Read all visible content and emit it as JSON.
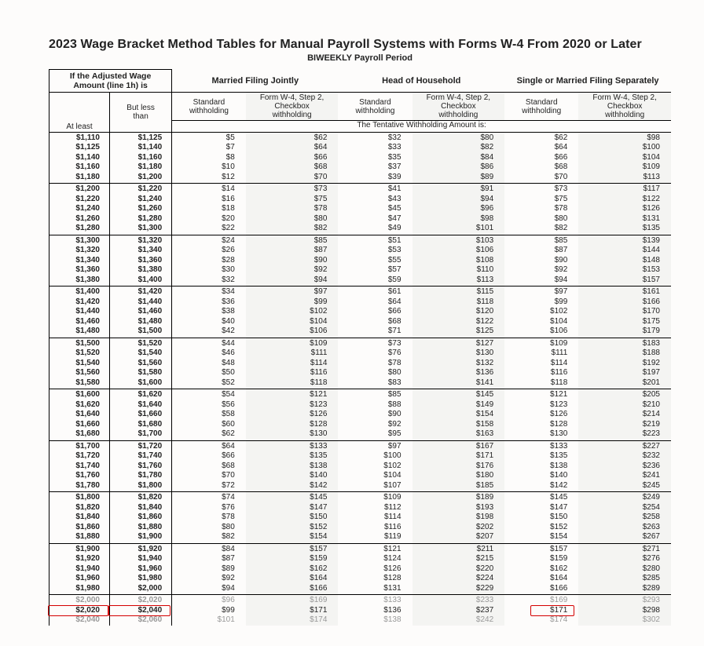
{
  "title": "2023 Wage Bracket Method Tables for Manual Payroll Systems with Forms W-4 From 2020 or Later",
  "subtitle": "BIWEEKLY Payroll Period",
  "wage_header_html": "If the <b>Adjusted Wage<br>Amount</b> (line 1h) is",
  "status_headers": [
    "Married Filing Jointly",
    "Head of Household",
    "Single or Married Filing Separately"
  ],
  "sub_headers": {
    "std": "Standard<br>withholding",
    "chk": "Form W-4, Step 2,<br>Checkbox<br>withholding"
  },
  "atleast_label": "At least",
  "butless_label": "But less<br>than",
  "tentative_label": "The Tentative Withholding Amount is:",
  "col_widths": [
    "72",
    "74",
    "88",
    "110",
    "88",
    "110",
    "88",
    "110"
  ],
  "colors": {
    "border": "#000000",
    "text": "#222222",
    "highlight": "#d40000",
    "faded": "#999999",
    "bg": "#fdfcfb",
    "shade": "#f4f4f2"
  },
  "font": {
    "family": "Arial",
    "body_pt": 10,
    "title_pt": 16
  },
  "highlighted_row_index": 46,
  "groups": [
    [
      {
        "lo": "$1,110",
        "hi": "$1,125",
        "v": [
          "$5",
          "$62",
          "$32",
          "$80",
          "$62",
          "$98"
        ]
      },
      {
        "lo": "$1,125",
        "hi": "$1,140",
        "v": [
          "$7",
          "$64",
          "$33",
          "$82",
          "$64",
          "$100"
        ]
      },
      {
        "lo": "$1,140",
        "hi": "$1,160",
        "v": [
          "$8",
          "$66",
          "$35",
          "$84",
          "$66",
          "$104"
        ]
      },
      {
        "lo": "$1,160",
        "hi": "$1,180",
        "v": [
          "$10",
          "$68",
          "$37",
          "$86",
          "$68",
          "$109"
        ]
      },
      {
        "lo": "$1,180",
        "hi": "$1,200",
        "v": [
          "$12",
          "$70",
          "$39",
          "$89",
          "$70",
          "$113"
        ]
      }
    ],
    [
      {
        "lo": "$1,200",
        "hi": "$1,220",
        "v": [
          "$14",
          "$73",
          "$41",
          "$91",
          "$73",
          "$117"
        ]
      },
      {
        "lo": "$1,220",
        "hi": "$1,240",
        "v": [
          "$16",
          "$75",
          "$43",
          "$94",
          "$75",
          "$122"
        ]
      },
      {
        "lo": "$1,240",
        "hi": "$1,260",
        "v": [
          "$18",
          "$78",
          "$45",
          "$96",
          "$78",
          "$126"
        ]
      },
      {
        "lo": "$1,260",
        "hi": "$1,280",
        "v": [
          "$20",
          "$80",
          "$47",
          "$98",
          "$80",
          "$131"
        ]
      },
      {
        "lo": "$1,280",
        "hi": "$1,300",
        "v": [
          "$22",
          "$82",
          "$49",
          "$101",
          "$82",
          "$135"
        ]
      }
    ],
    [
      {
        "lo": "$1,300",
        "hi": "$1,320",
        "v": [
          "$24",
          "$85",
          "$51",
          "$103",
          "$85",
          "$139"
        ]
      },
      {
        "lo": "$1,320",
        "hi": "$1,340",
        "v": [
          "$26",
          "$87",
          "$53",
          "$106",
          "$87",
          "$144"
        ]
      },
      {
        "lo": "$1,340",
        "hi": "$1,360",
        "v": [
          "$28",
          "$90",
          "$55",
          "$108",
          "$90",
          "$148"
        ]
      },
      {
        "lo": "$1,360",
        "hi": "$1,380",
        "v": [
          "$30",
          "$92",
          "$57",
          "$110",
          "$92",
          "$153"
        ]
      },
      {
        "lo": "$1,380",
        "hi": "$1,400",
        "v": [
          "$32",
          "$94",
          "$59",
          "$113",
          "$94",
          "$157"
        ]
      }
    ],
    [
      {
        "lo": "$1,400",
        "hi": "$1,420",
        "v": [
          "$34",
          "$97",
          "$61",
          "$115",
          "$97",
          "$161"
        ]
      },
      {
        "lo": "$1,420",
        "hi": "$1,440",
        "v": [
          "$36",
          "$99",
          "$64",
          "$118",
          "$99",
          "$166"
        ]
      },
      {
        "lo": "$1,440",
        "hi": "$1,460",
        "v": [
          "$38",
          "$102",
          "$66",
          "$120",
          "$102",
          "$170"
        ]
      },
      {
        "lo": "$1,460",
        "hi": "$1,480",
        "v": [
          "$40",
          "$104",
          "$68",
          "$122",
          "$104",
          "$175"
        ]
      },
      {
        "lo": "$1,480",
        "hi": "$1,500",
        "v": [
          "$42",
          "$106",
          "$71",
          "$125",
          "$106",
          "$179"
        ]
      }
    ],
    [
      {
        "lo": "$1,500",
        "hi": "$1,520",
        "v": [
          "$44",
          "$109",
          "$73",
          "$127",
          "$109",
          "$183"
        ]
      },
      {
        "lo": "$1,520",
        "hi": "$1,540",
        "v": [
          "$46",
          "$111",
          "$76",
          "$130",
          "$111",
          "$188"
        ]
      },
      {
        "lo": "$1,540",
        "hi": "$1,560",
        "v": [
          "$48",
          "$114",
          "$78",
          "$132",
          "$114",
          "$192"
        ]
      },
      {
        "lo": "$1,560",
        "hi": "$1,580",
        "v": [
          "$50",
          "$116",
          "$80",
          "$136",
          "$116",
          "$197"
        ]
      },
      {
        "lo": "$1,580",
        "hi": "$1,600",
        "v": [
          "$52",
          "$118",
          "$83",
          "$141",
          "$118",
          "$201"
        ]
      }
    ],
    [
      {
        "lo": "$1,600",
        "hi": "$1,620",
        "v": [
          "$54",
          "$121",
          "$85",
          "$145",
          "$121",
          "$205"
        ]
      },
      {
        "lo": "$1,620",
        "hi": "$1,640",
        "v": [
          "$56",
          "$123",
          "$88",
          "$149",
          "$123",
          "$210"
        ]
      },
      {
        "lo": "$1,640",
        "hi": "$1,660",
        "v": [
          "$58",
          "$126",
          "$90",
          "$154",
          "$126",
          "$214"
        ]
      },
      {
        "lo": "$1,660",
        "hi": "$1,680",
        "v": [
          "$60",
          "$128",
          "$92",
          "$158",
          "$128",
          "$219"
        ]
      },
      {
        "lo": "$1,680",
        "hi": "$1,700",
        "v": [
          "$62",
          "$130",
          "$95",
          "$163",
          "$130",
          "$223"
        ]
      }
    ],
    [
      {
        "lo": "$1,700",
        "hi": "$1,720",
        "v": [
          "$64",
          "$133",
          "$97",
          "$167",
          "$133",
          "$227"
        ]
      },
      {
        "lo": "$1,720",
        "hi": "$1,740",
        "v": [
          "$66",
          "$135",
          "$100",
          "$171",
          "$135",
          "$232"
        ]
      },
      {
        "lo": "$1,740",
        "hi": "$1,760",
        "v": [
          "$68",
          "$138",
          "$102",
          "$176",
          "$138",
          "$236"
        ]
      },
      {
        "lo": "$1,760",
        "hi": "$1,780",
        "v": [
          "$70",
          "$140",
          "$104",
          "$180",
          "$140",
          "$241"
        ]
      },
      {
        "lo": "$1,780",
        "hi": "$1,800",
        "v": [
          "$72",
          "$142",
          "$107",
          "$185",
          "$142",
          "$245"
        ]
      }
    ],
    [
      {
        "lo": "$1,800",
        "hi": "$1,820",
        "v": [
          "$74",
          "$145",
          "$109",
          "$189",
          "$145",
          "$249"
        ]
      },
      {
        "lo": "$1,820",
        "hi": "$1,840",
        "v": [
          "$76",
          "$147",
          "$112",
          "$193",
          "$147",
          "$254"
        ]
      },
      {
        "lo": "$1,840",
        "hi": "$1,860",
        "v": [
          "$78",
          "$150",
          "$114",
          "$198",
          "$150",
          "$258"
        ]
      },
      {
        "lo": "$1,860",
        "hi": "$1,880",
        "v": [
          "$80",
          "$152",
          "$116",
          "$202",
          "$152",
          "$263"
        ]
      },
      {
        "lo": "$1,880",
        "hi": "$1,900",
        "v": [
          "$82",
          "$154",
          "$119",
          "$207",
          "$154",
          "$267"
        ]
      }
    ],
    [
      {
        "lo": "$1,900",
        "hi": "$1,920",
        "v": [
          "$84",
          "$157",
          "$121",
          "$211",
          "$157",
          "$271"
        ]
      },
      {
        "lo": "$1,920",
        "hi": "$1,940",
        "v": [
          "$87",
          "$159",
          "$124",
          "$215",
          "$159",
          "$276"
        ]
      },
      {
        "lo": "$1,940",
        "hi": "$1,960",
        "v": [
          "$89",
          "$162",
          "$126",
          "$220",
          "$162",
          "$280"
        ]
      },
      {
        "lo": "$1,960",
        "hi": "$1,980",
        "v": [
          "$92",
          "$164",
          "$128",
          "$224",
          "$164",
          "$285"
        ]
      },
      {
        "lo": "$1,980",
        "hi": "$2,000",
        "v": [
          "$94",
          "$166",
          "$131",
          "$229",
          "$166",
          "$289"
        ]
      }
    ],
    [
      {
        "lo": "$2,000",
        "hi": "$2,020",
        "v": [
          "$96",
          "$169",
          "$133",
          "$233",
          "$169",
          "$293"
        ],
        "fade": true
      },
      {
        "lo": "$2,020",
        "hi": "$2,040",
        "v": [
          "$99",
          "$171",
          "$136",
          "$237",
          "$171",
          "$298"
        ],
        "highlight": true
      },
      {
        "lo": "$2,040",
        "hi": "$2,060",
        "v": [
          "$101",
          "$174",
          "$138",
          "$242",
          "$174",
          "$302"
        ],
        "fade": true
      }
    ]
  ]
}
